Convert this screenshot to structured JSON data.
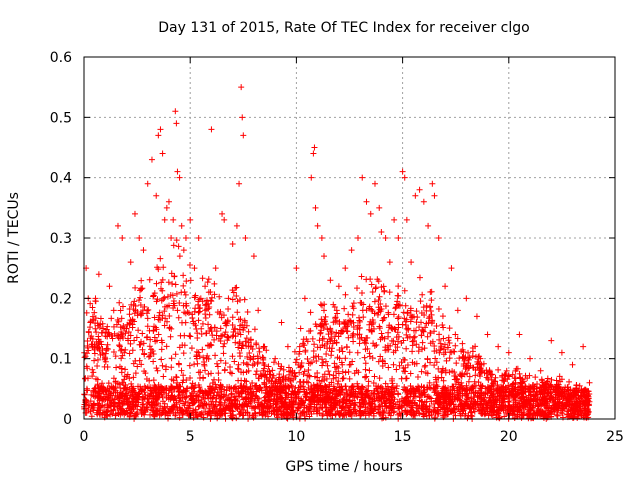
{
  "chart_data": {
    "type": "scatter",
    "title": "Day 131 of 2015, Rate Of TEC Index for receiver clgo",
    "xlabel": "GPS time / hours",
    "ylabel": "ROTI / TECUs",
    "xlim": [
      0,
      25
    ],
    "ylim": [
      0,
      0.6
    ],
    "xticks": [
      "0",
      "5",
      "10",
      "15",
      "20",
      "25"
    ],
    "yticks": [
      "0",
      "0.1",
      "0.2",
      "0.3",
      "0.4",
      "0.5",
      "0.6"
    ],
    "grid": true,
    "legend": "none",
    "marker": "plus",
    "color": "#ff0000",
    "x_coverage_hours": [
      0,
      23.8
    ],
    "series": [
      {
        "values": [
          [
            0.0,
            0.02
          ],
          [
            0.1,
            0.25
          ],
          [
            0.2,
            0.2
          ],
          [
            0.3,
            0.16
          ],
          [
            0.5,
            0.12
          ],
          [
            0.7,
            0.24
          ],
          [
            0.9,
            0.15
          ],
          [
            1.0,
            0.1
          ],
          [
            1.2,
            0.22
          ],
          [
            1.4,
            0.18
          ],
          [
            1.6,
            0.32
          ],
          [
            1.8,
            0.3
          ],
          [
            2.0,
            0.15
          ],
          [
            2.2,
            0.26
          ],
          [
            2.4,
            0.34
          ],
          [
            2.6,
            0.3
          ],
          [
            2.8,
            0.28
          ],
          [
            3.0,
            0.39
          ],
          [
            3.2,
            0.43
          ],
          [
            3.4,
            0.37
          ],
          [
            3.5,
            0.47
          ],
          [
            3.6,
            0.48
          ],
          [
            3.7,
            0.44
          ],
          [
            3.8,
            0.33
          ],
          [
            3.9,
            0.35
          ],
          [
            4.0,
            0.36
          ],
          [
            4.1,
            0.3
          ],
          [
            4.2,
            0.33
          ],
          [
            4.3,
            0.51
          ],
          [
            4.35,
            0.49
          ],
          [
            4.4,
            0.41
          ],
          [
            4.5,
            0.4
          ],
          [
            4.6,
            0.32
          ],
          [
            4.7,
            0.28
          ],
          [
            4.8,
            0.3
          ],
          [
            5.0,
            0.33
          ],
          [
            5.2,
            0.25
          ],
          [
            5.4,
            0.3
          ],
          [
            5.5,
            0.2
          ],
          [
            5.7,
            0.22
          ],
          [
            6.0,
            0.48
          ],
          [
            6.2,
            0.25
          ],
          [
            6.5,
            0.34
          ],
          [
            6.6,
            0.33
          ],
          [
            6.8,
            0.2
          ],
          [
            7.0,
            0.29
          ],
          [
            7.2,
            0.32
          ],
          [
            7.3,
            0.39
          ],
          [
            7.4,
            0.55
          ],
          [
            7.45,
            0.5
          ],
          [
            7.5,
            0.47
          ],
          [
            7.6,
            0.3
          ],
          [
            8.0,
            0.27
          ],
          [
            8.2,
            0.18
          ],
          [
            8.5,
            0.12
          ],
          [
            9.0,
            0.1
          ],
          [
            9.3,
            0.16
          ],
          [
            9.6,
            0.12
          ],
          [
            10.0,
            0.25
          ],
          [
            10.2,
            0.15
          ],
          [
            10.4,
            0.2
          ],
          [
            10.7,
            0.4
          ],
          [
            10.8,
            0.44
          ],
          [
            10.85,
            0.45
          ],
          [
            10.9,
            0.35
          ],
          [
            11.0,
            0.32
          ],
          [
            11.2,
            0.3
          ],
          [
            11.3,
            0.27
          ],
          [
            11.6,
            0.23
          ],
          [
            11.9,
            0.18
          ],
          [
            12.0,
            0.22
          ],
          [
            12.3,
            0.25
          ],
          [
            12.6,
            0.28
          ],
          [
            12.9,
            0.3
          ],
          [
            13.1,
            0.4
          ],
          [
            13.3,
            0.36
          ],
          [
            13.5,
            0.34
          ],
          [
            13.7,
            0.39
          ],
          [
            13.9,
            0.35
          ],
          [
            14.0,
            0.31
          ],
          [
            14.2,
            0.3
          ],
          [
            14.4,
            0.26
          ],
          [
            14.6,
            0.33
          ],
          [
            14.8,
            0.3
          ],
          [
            15.0,
            0.41
          ],
          [
            15.1,
            0.4
          ],
          [
            15.2,
            0.33
          ],
          [
            15.4,
            0.26
          ],
          [
            15.6,
            0.37
          ],
          [
            15.8,
            0.38
          ],
          [
            16.0,
            0.36
          ],
          [
            16.2,
            0.32
          ],
          [
            16.4,
            0.39
          ],
          [
            16.5,
            0.37
          ],
          [
            16.7,
            0.3
          ],
          [
            17.0,
            0.22
          ],
          [
            17.3,
            0.25
          ],
          [
            17.6,
            0.18
          ],
          [
            18.0,
            0.2
          ],
          [
            18.5,
            0.17
          ],
          [
            19.0,
            0.14
          ],
          [
            19.5,
            0.12
          ],
          [
            20.0,
            0.11
          ],
          [
            20.5,
            0.14
          ],
          [
            21.0,
            0.1
          ],
          [
            21.5,
            0.08
          ],
          [
            22.0,
            0.13
          ],
          [
            22.5,
            0.11
          ],
          [
            23.0,
            0.09
          ],
          [
            23.5,
            0.12
          ],
          [
            23.8,
            0.06
          ]
        ],
        "density_profile": [
          [
            0,
            0.14
          ],
          [
            0.5,
            0.18
          ],
          [
            1,
            0.14
          ],
          [
            1.5,
            0.17
          ],
          [
            2,
            0.15
          ],
          [
            2.5,
            0.2
          ],
          [
            3,
            0.19
          ],
          [
            3.5,
            0.22
          ],
          [
            4,
            0.24
          ],
          [
            4.5,
            0.25
          ],
          [
            5,
            0.22
          ],
          [
            5.5,
            0.2
          ],
          [
            6,
            0.2
          ],
          [
            6.5,
            0.18
          ],
          [
            7,
            0.19
          ],
          [
            7.5,
            0.17
          ],
          [
            8,
            0.13
          ],
          [
            8.5,
            0.1
          ],
          [
            9,
            0.08
          ],
          [
            9.5,
            0.07
          ],
          [
            10,
            0.1
          ],
          [
            10.5,
            0.14
          ],
          [
            11,
            0.17
          ],
          [
            11.5,
            0.16
          ],
          [
            12,
            0.17
          ],
          [
            12.5,
            0.18
          ],
          [
            13,
            0.2
          ],
          [
            13.5,
            0.2
          ],
          [
            14,
            0.19
          ],
          [
            14.5,
            0.19
          ],
          [
            15,
            0.2
          ],
          [
            15.5,
            0.19
          ],
          [
            16,
            0.2
          ],
          [
            16.5,
            0.18
          ],
          [
            17,
            0.15
          ],
          [
            17.5,
            0.12
          ],
          [
            18,
            0.11
          ],
          [
            18.5,
            0.1
          ],
          [
            19,
            0.08
          ],
          [
            19.5,
            0.07
          ],
          [
            20,
            0.07
          ],
          [
            20.5,
            0.07
          ],
          [
            21,
            0.06
          ],
          [
            21.5,
            0.06
          ],
          [
            22,
            0.06
          ],
          [
            22.5,
            0.06
          ],
          [
            23,
            0.05
          ],
          [
            23.8,
            0.04
          ]
        ]
      }
    ]
  }
}
